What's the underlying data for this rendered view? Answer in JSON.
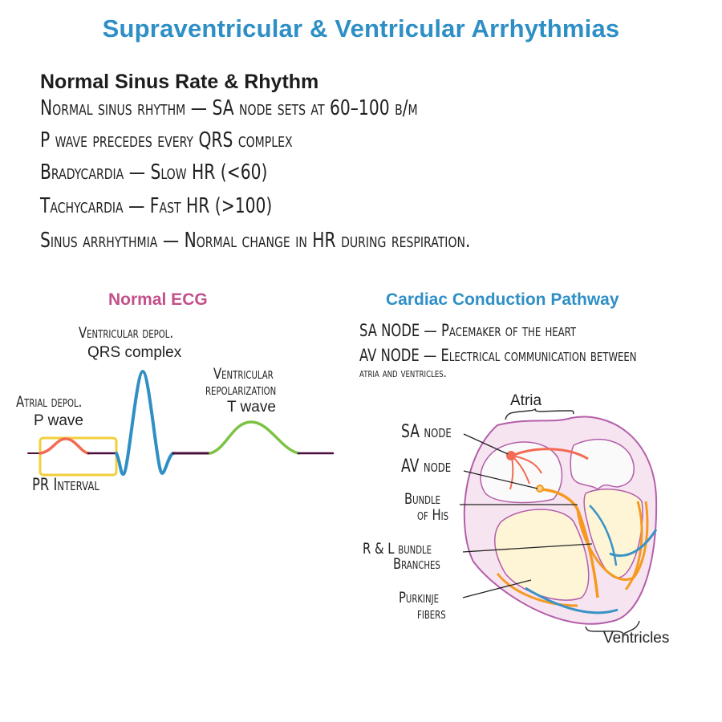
{
  "title": "Supraventricular & Ventricular Arrhythmias",
  "normal_section": {
    "heading": "Normal Sinus Rate & Rhythm",
    "lines": [
      "Normal sinus rhythm — SA node sets at 60–100 b/m",
      "P wave precedes every QRS complex",
      "Bradycardia —  Slow HR (<60)",
      "Tachycardia   — Fast HR (>100)",
      "Sinus arrhythmia — Normal change in HR during respiration."
    ]
  },
  "ecg": {
    "heading": "Normal ECG",
    "heading_color": "#c2508a",
    "labels": {
      "qrs_title": "Ventricular depol.",
      "qrs_sub": "QRS complex",
      "t_title_1": "Ventricular",
      "t_title_2": "repolarization",
      "t_sub": "T wave",
      "p_title": "Atrial depol.",
      "p_sub": "P wave",
      "pr": "PR Interval"
    },
    "colors": {
      "p_wave": "#f26b52",
      "qrs": "#2f8fc4",
      "t_wave": "#7cc243",
      "baseline": "#4a0f3d",
      "pr_box": "#f2cf3b"
    }
  },
  "conduction": {
    "heading": "Cardiac Conduction Pathway",
    "heading_color": "#2e8fc6",
    "lines": [
      "SA NODE — Pacemaker of the heart",
      "AV NODE — Electrical communication between",
      "atria and ventricles."
    ],
    "labels": {
      "atria": "Atria",
      "ventricles": "Ventricles",
      "sa_node": "SA node",
      "av_node": "AV node",
      "bundle_his_1": "Bundle",
      "bundle_his_2": "of His",
      "branches_1": "R & L bundle",
      "branches_2": "Branches",
      "purkinje_1": "Purkinje",
      "purkinje_2": "fibers"
    }
  }
}
